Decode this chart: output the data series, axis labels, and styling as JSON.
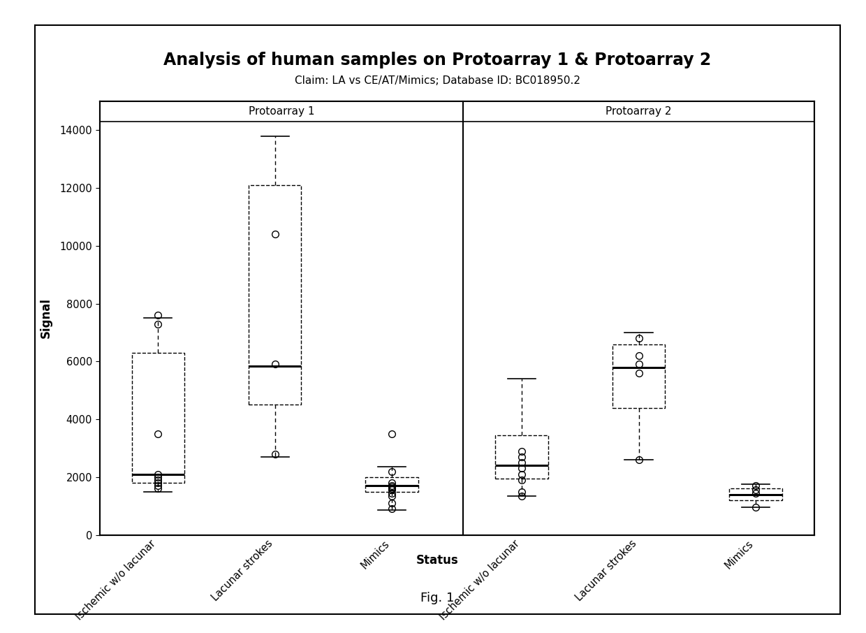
{
  "title": "Analysis of human samples on Protoarray 1 & Protoarray 2",
  "subtitle": "Claim: LA vs CE/AT/Mimics; Database ID: BC018950.2",
  "ylabel": "Signal",
  "xlabel": "Status",
  "fig_note": "Fig. 1",
  "panels": [
    "Protoarray 1",
    "Protoarray 2"
  ],
  "categories": [
    "Ischemic w/o lacunar",
    "Lacunar strokes",
    "Mimics"
  ],
  "ylim": [
    0,
    15000
  ],
  "yticks": [
    0,
    2000,
    4000,
    6000,
    8000,
    10000,
    12000,
    14000
  ],
  "panel1": {
    "ischemic": {
      "q1": 1800,
      "median": 2100,
      "q3": 6300,
      "whisker_low": 1500,
      "whisker_high": 7500,
      "outliers": [
        3500,
        7300,
        7600,
        1900,
        2000,
        2100,
        1800,
        1700,
        1600
      ]
    },
    "lacunar": {
      "q1": 4500,
      "median": 5850,
      "q3": 12100,
      "whisker_low": 2700,
      "whisker_high": 13800,
      "outliers": [
        10400,
        5900,
        2800
      ]
    },
    "mimics": {
      "q1": 1500,
      "median": 1700,
      "q3": 2000,
      "whisker_low": 850,
      "whisker_high": 2350,
      "outliers": [
        3500,
        1800,
        1700,
        1650,
        1600,
        1550,
        1450,
        1350,
        1100,
        900,
        2200
      ]
    }
  },
  "panel2": {
    "ischemic": {
      "q1": 1950,
      "median": 2400,
      "q3": 3450,
      "whisker_low": 1350,
      "whisker_high": 5400,
      "outliers": [
        2900,
        2700,
        2500,
        2300,
        2100,
        1900,
        1500,
        1350
      ]
    },
    "lacunar": {
      "q1": 4400,
      "median": 5800,
      "q3": 6600,
      "whisker_low": 2600,
      "whisker_high": 7000,
      "outliers": [
        6800,
        6200,
        5900,
        5600,
        2600
      ]
    },
    "mimics": {
      "q1": 1200,
      "median": 1400,
      "q3": 1600,
      "whisker_low": 950,
      "whisker_high": 1750,
      "outliers": [
        1700,
        1550,
        1450,
        950
      ]
    }
  }
}
